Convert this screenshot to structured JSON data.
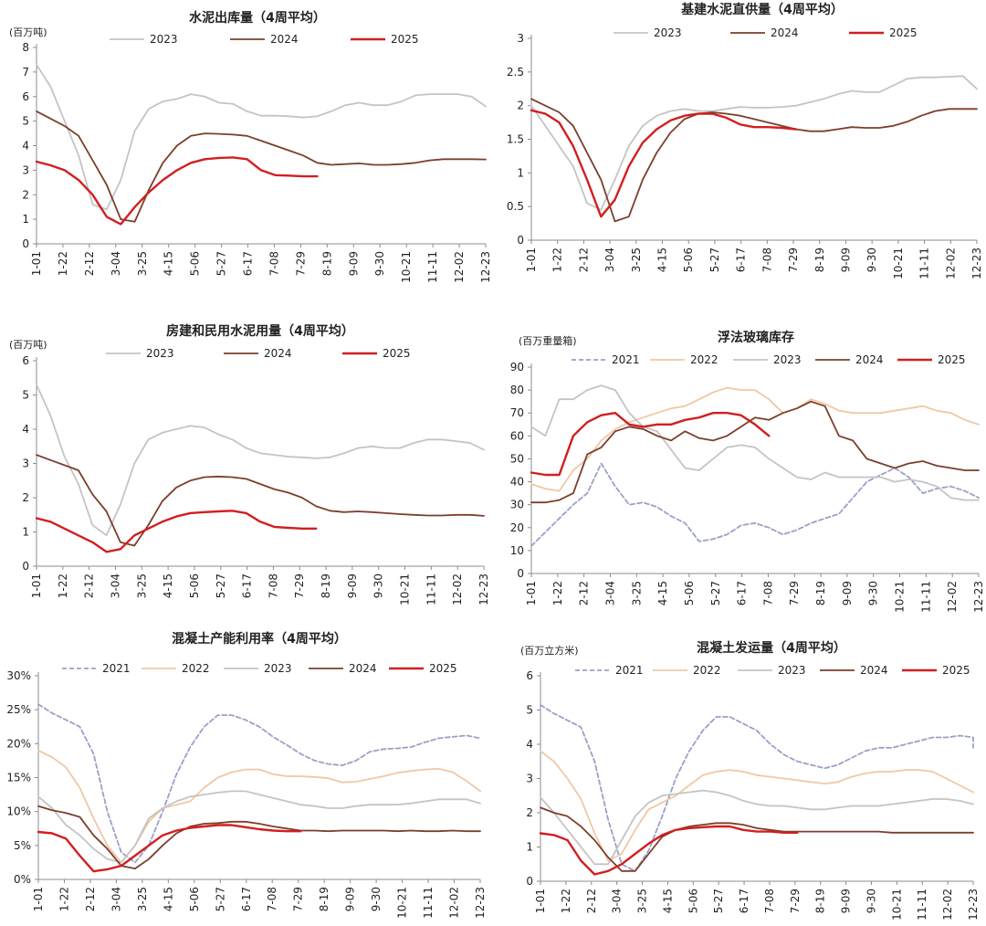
{
  "colors": {
    "2021": "#9aa0c8",
    "2022": "#f0c8a4",
    "2023": "#c4c4c4",
    "2024": "#7b3f2c",
    "2025": "#d11f1f",
    "axis": "#8c8c8c",
    "text": "#222222"
  },
  "x_ticks": [
    "1-01",
    "1-22",
    "2-12",
    "3-04",
    "3-25",
    "4-15",
    "5-06",
    "5-27",
    "6-17",
    "7-08",
    "7-29",
    "8-19",
    "9-09",
    "9-30",
    "10-21",
    "11-11",
    "12-02",
    "12-23"
  ],
  "chart_data": [
    {
      "id": "cement-shipments",
      "type": "line",
      "title": "水泥出库量（4周平均）",
      "unit": "(百万吨)",
      "ylim": [
        0,
        8
      ],
      "yticks": [
        "0",
        "1",
        "2",
        "3",
        "4",
        "5",
        "6",
        "7",
        "8"
      ],
      "series": [
        {
          "name": "2023",
          "dash": false,
          "values": [
            7.3,
            6.4,
            5.0,
            3.6,
            1.6,
            1.4,
            2.6,
            4.6,
            5.5,
            5.8,
            5.9,
            6.1,
            6.0,
            5.75,
            5.7,
            5.4,
            5.22,
            5.22,
            5.2,
            5.15,
            5.2,
            5.4,
            5.65,
            5.75,
            5.65,
            5.65,
            5.8,
            6.05,
            6.1,
            6.1,
            6.1,
            6.0,
            5.6
          ]
        },
        {
          "name": "2024",
          "dash": false,
          "values": [
            5.4,
            5.1,
            4.8,
            4.4,
            3.4,
            2.4,
            1.0,
            0.9,
            2.2,
            3.3,
            4.0,
            4.4,
            4.5,
            4.48,
            4.45,
            4.4,
            4.2,
            4.0,
            3.8,
            3.6,
            3.3,
            3.22,
            3.25,
            3.28,
            3.22,
            3.22,
            3.25,
            3.3,
            3.4,
            3.45,
            3.45,
            3.45,
            3.44
          ]
        },
        {
          "name": "2025",
          "dash": false,
          "values": [
            3.35,
            3.2,
            3.0,
            2.6,
            2.0,
            1.1,
            0.8,
            1.5,
            2.1,
            2.6,
            3.0,
            3.3,
            3.45,
            3.5,
            3.52,
            3.45,
            3.0,
            2.8,
            2.78,
            2.75,
            2.75
          ]
        }
      ]
    },
    {
      "id": "infra-cement",
      "type": "line",
      "title": "基建水泥直供量（4周平均）",
      "unit": "",
      "ylim": [
        0,
        3
      ],
      "yticks": [
        "0",
        "0.5",
        "1",
        "1.5",
        "2",
        "2.5",
        "3"
      ],
      "series": [
        {
          "name": "2023",
          "dash": false,
          "values": [
            2.0,
            1.7,
            1.4,
            1.1,
            0.55,
            0.45,
            0.9,
            1.4,
            1.7,
            1.85,
            1.92,
            1.95,
            1.92,
            1.92,
            1.95,
            1.98,
            1.97,
            1.97,
            1.98,
            2.0,
            2.05,
            2.1,
            2.17,
            2.22,
            2.2,
            2.2,
            2.3,
            2.4,
            2.42,
            2.42,
            2.43,
            2.44,
            2.25
          ]
        },
        {
          "name": "2024",
          "dash": false,
          "values": [
            2.1,
            2.0,
            1.9,
            1.7,
            1.3,
            0.9,
            0.28,
            0.35,
            0.9,
            1.3,
            1.6,
            1.8,
            1.88,
            1.9,
            1.88,
            1.85,
            1.8,
            1.75,
            1.7,
            1.65,
            1.62,
            1.62,
            1.65,
            1.68,
            1.67,
            1.67,
            1.7,
            1.76,
            1.85,
            1.92,
            1.95,
            1.95,
            1.95
          ]
        },
        {
          "name": "2025",
          "dash": false,
          "values": [
            1.93,
            1.88,
            1.75,
            1.4,
            0.9,
            0.35,
            0.6,
            1.1,
            1.45,
            1.65,
            1.78,
            1.85,
            1.88,
            1.88,
            1.82,
            1.72,
            1.68,
            1.68,
            1.67,
            1.65
          ]
        }
      ]
    },
    {
      "id": "housing-cement",
      "type": "line",
      "title": "房建和民用水泥用量（4周平均）",
      "unit": "(百万吨)",
      "ylim": [
        0,
        6
      ],
      "yticks": [
        "0",
        "1",
        "2",
        "3",
        "4",
        "5",
        "6"
      ],
      "series": [
        {
          "name": "2023",
          "dash": false,
          "values": [
            5.3,
            4.4,
            3.2,
            2.4,
            1.2,
            0.9,
            1.8,
            3.0,
            3.7,
            3.9,
            4.0,
            4.1,
            4.05,
            3.85,
            3.7,
            3.45,
            3.3,
            3.25,
            3.2,
            3.18,
            3.15,
            3.18,
            3.3,
            3.45,
            3.5,
            3.45,
            3.45,
            3.6,
            3.7,
            3.7,
            3.65,
            3.6,
            3.4
          ]
        },
        {
          "name": "2024",
          "dash": false,
          "values": [
            3.25,
            3.1,
            2.95,
            2.8,
            2.1,
            1.6,
            0.7,
            0.6,
            1.2,
            1.9,
            2.3,
            2.5,
            2.6,
            2.62,
            2.6,
            2.55,
            2.4,
            2.25,
            2.15,
            2.0,
            1.75,
            1.62,
            1.58,
            1.6,
            1.58,
            1.55,
            1.52,
            1.5,
            1.48,
            1.48,
            1.5,
            1.5,
            1.47
          ]
        },
        {
          "name": "2025",
          "dash": false,
          "values": [
            1.4,
            1.3,
            1.1,
            0.9,
            0.7,
            0.42,
            0.5,
            0.9,
            1.1,
            1.3,
            1.45,
            1.55,
            1.58,
            1.6,
            1.62,
            1.55,
            1.3,
            1.15,
            1.12,
            1.1,
            1.1
          ]
        }
      ]
    },
    {
      "id": "float-glass",
      "type": "line",
      "title": "浮法玻璃库存",
      "unit": "(百万重量箱)",
      "ylim": [
        0,
        90
      ],
      "yticks": [
        "0",
        "10",
        "20",
        "30",
        "40",
        "50",
        "60",
        "70",
        "80",
        "90"
      ],
      "series": [
        {
          "name": "2021",
          "dash": true,
          "values": [
            12,
            18,
            24,
            30,
            35,
            48,
            38,
            30,
            31,
            29,
            25,
            22,
            14,
            15,
            17,
            21,
            22,
            20,
            17,
            19,
            22,
            24,
            26,
            33,
            40,
            43,
            46,
            42,
            35,
            37,
            38,
            36,
            33
          ]
        },
        {
          "name": "2022",
          "dash": false,
          "values": [
            39,
            37,
            36,
            45,
            50,
            58,
            63,
            66,
            68,
            70,
            72,
            73,
            76,
            79,
            81,
            80,
            80,
            76,
            70,
            72,
            76,
            74,
            71,
            70,
            70,
            70,
            71,
            72,
            73,
            71,
            70,
            67,
            65
          ]
        },
        {
          "name": "2023",
          "dash": false,
          "values": [
            64,
            60,
            76,
            76,
            80,
            82,
            80,
            70,
            64,
            62,
            54,
            46,
            45,
            50,
            55,
            56,
            55,
            50,
            46,
            42,
            41,
            44,
            42,
            42,
            42,
            42,
            40,
            41,
            40,
            38,
            33,
            32,
            32
          ]
        },
        {
          "name": "2024",
          "dash": false,
          "values": [
            31,
            31,
            32,
            35,
            52,
            55,
            62,
            64,
            63,
            60,
            58,
            62,
            59,
            58,
            60,
            64,
            68,
            67,
            70,
            72,
            75,
            73,
            60,
            58,
            50,
            48,
            46,
            48,
            49,
            47,
            46,
            45,
            45
          ]
        },
        {
          "name": "2025",
          "dash": false,
          "values": [
            44,
            43,
            43,
            60,
            66,
            69,
            70,
            65,
            64,
            65,
            65,
            67,
            68,
            70,
            70,
            69,
            65,
            60
          ]
        }
      ]
    },
    {
      "id": "concrete-utilization",
      "type": "line",
      "title": "混凝土产能利用率（4周平均）",
      "unit": "",
      "ylim": [
        0,
        30
      ],
      "yticks": [
        "0%",
        "5%",
        "10%",
        "15%",
        "20%",
        "25%",
        "30%"
      ],
      "series": [
        {
          "name": "2021",
          "dash": true,
          "values": [
            25.8,
            24.5,
            23.5,
            22.5,
            18.5,
            10,
            4,
            2.5,
            5,
            10,
            15.5,
            19.5,
            22.5,
            24.2,
            24.2,
            23.5,
            22.5,
            21,
            19.8,
            18.5,
            17.5,
            17,
            16.8,
            17.5,
            18.8,
            19.2,
            19.3,
            19.5,
            20.2,
            20.8,
            21,
            21.2,
            20.8
          ]
        },
        {
          "name": "2022",
          "dash": false,
          "values": [
            19,
            18,
            16.5,
            13.5,
            9,
            5,
            2.5,
            5,
            8.5,
            10.5,
            11,
            11.5,
            13.5,
            15,
            15.8,
            16.2,
            16.2,
            15.5,
            15.2,
            15.2,
            15.1,
            14.9,
            14.3,
            14.4,
            14.8,
            15.2,
            15.7,
            16,
            16.2,
            16.3,
            15.8,
            14.5,
            13
          ]
        },
        {
          "name": "2023",
          "dash": false,
          "values": [
            12.2,
            10.5,
            8,
            6.5,
            4.5,
            3,
            2.5,
            5,
            9,
            10.5,
            11.5,
            12.2,
            12.5,
            12.8,
            13,
            13,
            12.5,
            12,
            11.5,
            11,
            10.8,
            10.5,
            10.5,
            10.8,
            11,
            11,
            11,
            11.2,
            11.5,
            11.8,
            11.8,
            11.8,
            11.2
          ]
        },
        {
          "name": "2024",
          "dash": false,
          "values": [
            10.8,
            10.2,
            9.8,
            9.2,
            6.5,
            4.5,
            2,
            1.6,
            3,
            5,
            6.8,
            7.8,
            8.2,
            8.3,
            8.5,
            8.5,
            8.2,
            7.8,
            7.5,
            7.2,
            7.2,
            7.1,
            7.2,
            7.2,
            7.2,
            7.2,
            7.1,
            7.2,
            7.1,
            7.1,
            7.2,
            7.1,
            7.1
          ]
        },
        {
          "name": "2025",
          "dash": false,
          "values": [
            7,
            6.8,
            6,
            3.5,
            1.2,
            1.5,
            2,
            3.5,
            5,
            6.5,
            7.2,
            7.6,
            7.8,
            8,
            8,
            7.7,
            7.4,
            7.2,
            7.1,
            7.1
          ]
        }
      ]
    },
    {
      "id": "concrete-shipments",
      "type": "line",
      "title": "混凝土发运量（4周平均）",
      "unit": "(百万立方米)",
      "ylim": [
        0,
        6
      ],
      "yticks": [
        "0",
        "1",
        "2",
        "3",
        "4",
        "5",
        "6"
      ],
      "series": [
        {
          "name": "2021",
          "dash": true,
          "values": [
            5.15,
            4.9,
            4.7,
            4.5,
            3.5,
            1.8,
            0.5,
            0.3,
            0.9,
            1.9,
            3.0,
            3.8,
            4.4,
            4.8,
            4.8,
            4.6,
            4.4,
            4.0,
            3.7,
            3.5,
            3.4,
            3.3,
            3.4,
            3.6,
            3.8,
            3.9,
            3.9,
            4.0,
            4.1,
            4.2,
            4.2,
            4.25,
            4.2,
            3.9
          ]
        },
        {
          "name": "2022",
          "dash": false,
          "values": [
            3.8,
            3.5,
            3.0,
            2.4,
            1.4,
            0.6,
            0.8,
            1.5,
            2.1,
            2.3,
            2.5,
            2.8,
            3.1,
            3.2,
            3.25,
            3.2,
            3.1,
            3.05,
            3.0,
            2.95,
            2.9,
            2.85,
            2.9,
            3.05,
            3.15,
            3.2,
            3.2,
            3.25,
            3.25,
            3.2,
            3.0,
            2.8,
            2.6
          ]
        },
        {
          "name": "2023",
          "dash": false,
          "values": [
            2.45,
            2.0,
            1.5,
            1.0,
            0.5,
            0.5,
            1.2,
            1.9,
            2.3,
            2.5,
            2.55,
            2.6,
            2.65,
            2.6,
            2.5,
            2.35,
            2.25,
            2.2,
            2.2,
            2.15,
            2.1,
            2.1,
            2.15,
            2.2,
            2.2,
            2.2,
            2.25,
            2.3,
            2.35,
            2.4,
            2.4,
            2.35,
            2.25
          ]
        },
        {
          "name": "2024",
          "dash": false,
          "values": [
            2.15,
            2.0,
            1.9,
            1.6,
            1.2,
            0.7,
            0.3,
            0.3,
            0.8,
            1.3,
            1.5,
            1.6,
            1.65,
            1.7,
            1.7,
            1.65,
            1.55,
            1.5,
            1.45,
            1.45,
            1.45,
            1.45,
            1.45,
            1.45,
            1.45,
            1.45,
            1.42,
            1.42,
            1.42,
            1.42,
            1.42,
            1.42,
            1.42
          ]
        },
        {
          "name": "2025",
          "dash": false,
          "values": [
            1.4,
            1.35,
            1.2,
            0.6,
            0.2,
            0.3,
            0.5,
            0.8,
            1.1,
            1.35,
            1.5,
            1.55,
            1.58,
            1.6,
            1.6,
            1.5,
            1.45,
            1.45,
            1.42,
            1.42
          ]
        }
      ]
    }
  ]
}
